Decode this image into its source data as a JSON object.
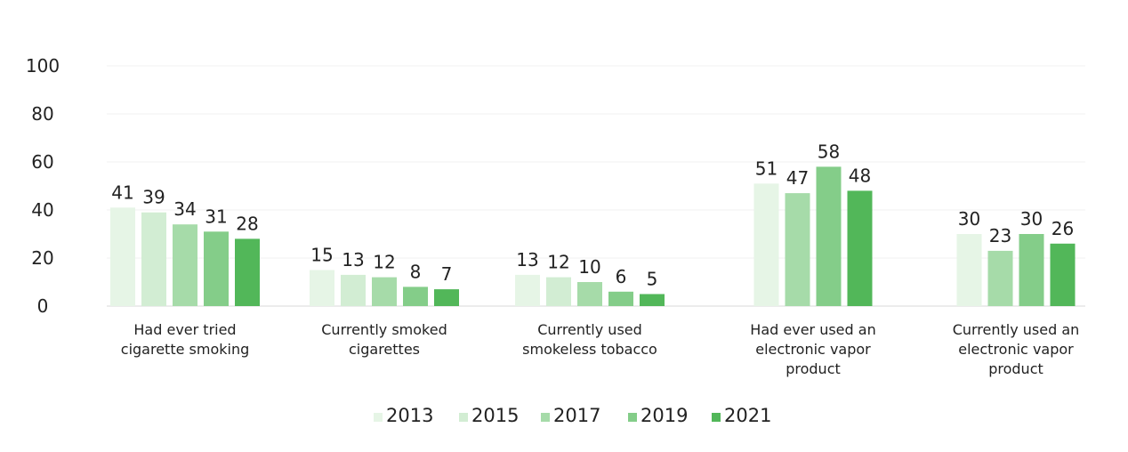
{
  "chart_data": {
    "type": "bar",
    "title": "",
    "xlabel": "",
    "ylabel": "",
    "ylim": [
      0,
      100
    ],
    "yticks": [
      "0",
      "20",
      "40",
      "60",
      "80",
      "100"
    ],
    "grid": true,
    "legend_position": "bottom",
    "categories": [
      [
        "Had ever tried",
        "cigarette smoking"
      ],
      [
        "Currently smoked",
        "cigarettes"
      ],
      [
        "Currently used",
        "smokeless tobacco"
      ],
      [
        "Had ever used an",
        "electronic vapor",
        "product"
      ],
      [
        "Currently used an",
        "electronic vapor",
        "product"
      ]
    ],
    "series": [
      {
        "name": "2013",
        "color": "#e6f5e6",
        "values": [
          41,
          15,
          13,
          51,
          30
        ]
      },
      {
        "name": "2015",
        "color": "#d2edd3",
        "values": [
          39,
          13,
          12,
          null,
          null
        ]
      },
      {
        "name": "2017",
        "color": "#a6dba9",
        "values": [
          34,
          12,
          10,
          47,
          23
        ]
      },
      {
        "name": "2019",
        "color": "#84cd89",
        "values": [
          31,
          8,
          6,
          58,
          30
        ]
      },
      {
        "name": "2021",
        "color": "#52b759",
        "values": [
          28,
          7,
          5,
          48,
          26
        ]
      }
    ]
  }
}
